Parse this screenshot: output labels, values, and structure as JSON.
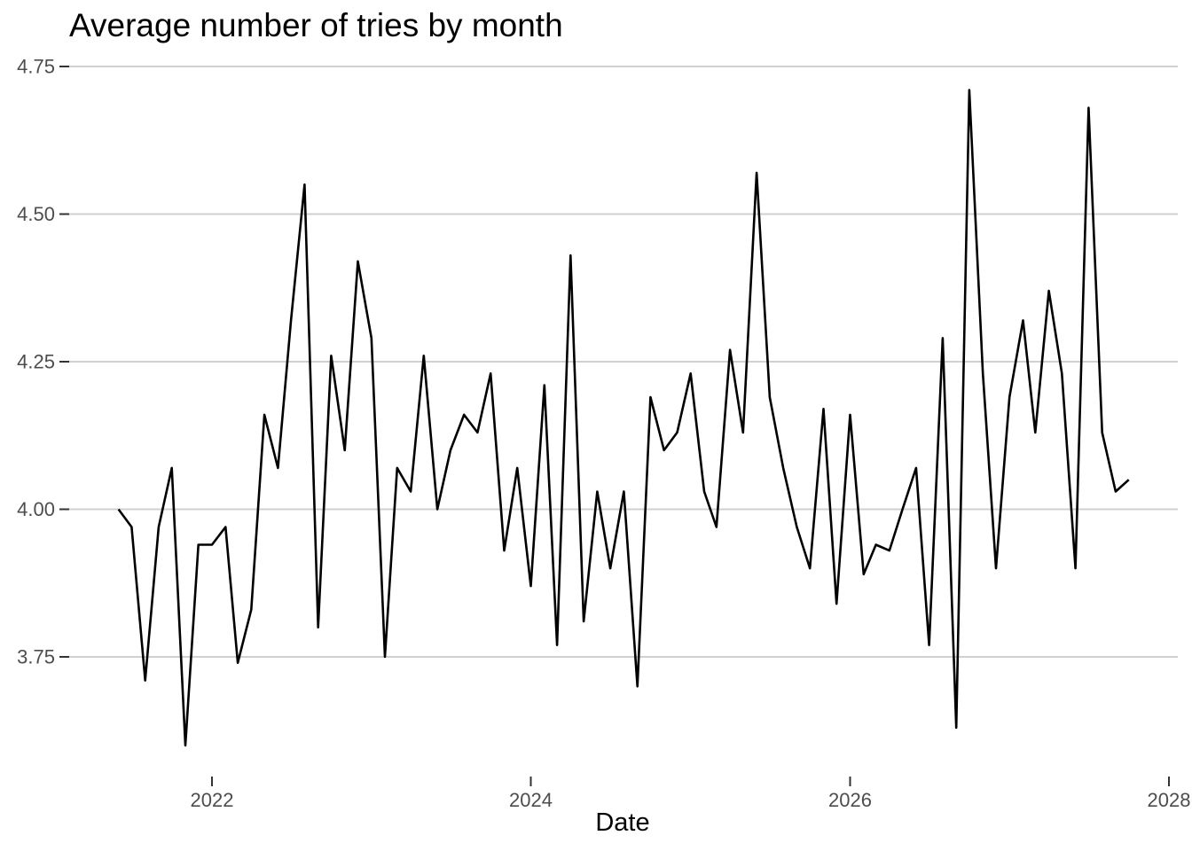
{
  "chart_data": {
    "type": "line",
    "title": "Average number of tries by month",
    "xlabel": "Date",
    "ylabel": "",
    "x_ticks": [
      "2022",
      "2024",
      "2026",
      "2028"
    ],
    "y_ticks": [
      "3.75",
      "4.00",
      "4.25",
      "4.50",
      "4.75"
    ],
    "xlim": [
      "2021-01-01",
      "2028-01-01"
    ],
    "ylim": [
      3.6,
      4.75
    ],
    "grid": {
      "horizontal": true,
      "vertical": false
    },
    "colors": {
      "line": "#000000",
      "grid": "#d0d0d0",
      "tick_text": "#4d4d4d"
    },
    "series": [
      {
        "x": [
          "2021-06-01",
          "2021-07-01",
          "2021-08-01",
          "2021-09-01",
          "2021-10-01",
          "2021-11-01",
          "2021-12-01",
          "2022-01-01",
          "2022-02-01",
          "2022-03-01",
          "2022-04-01",
          "2022-05-01",
          "2022-06-01",
          "2022-07-01",
          "2022-08-01",
          "2022-09-01",
          "2022-10-01",
          "2022-11-01",
          "2022-12-01",
          "2023-01-01",
          "2023-02-01",
          "2023-03-01",
          "2023-04-01",
          "2023-05-01",
          "2023-06-01",
          "2023-07-01",
          "2023-08-01",
          "2023-09-01",
          "2023-10-01",
          "2023-11-01",
          "2023-12-01",
          "2024-01-01",
          "2024-02-01",
          "2024-03-01",
          "2024-04-01",
          "2024-05-01",
          "2024-06-01",
          "2024-07-01",
          "2024-08-01",
          "2024-09-01",
          "2024-10-01",
          "2024-11-01",
          "2024-12-01",
          "2025-01-01",
          "2025-02-01",
          "2025-03-01",
          "2025-04-01",
          "2025-05-01",
          "2025-06-01",
          "2025-07-01",
          "2025-08-01",
          "2025-09-01",
          "2025-10-01",
          "2025-11-01",
          "2025-12-01",
          "2026-01-01",
          "2026-02-01",
          "2026-03-01",
          "2026-04-01",
          "2026-05-01",
          "2026-06-01",
          "2026-07-01",
          "2026-08-01",
          "2026-09-01",
          "2026-10-01",
          "2026-11-01",
          "2026-12-01",
          "2027-01-01",
          "2027-02-01",
          "2027-03-01",
          "2027-04-01",
          "2027-05-01",
          "2027-06-01",
          "2027-07-01",
          "2027-08-01",
          "2027-09-01",
          "2027-10-01"
        ],
        "y": [
          4.0,
          3.97,
          3.71,
          3.97,
          4.07,
          3.6,
          3.94,
          3.94,
          3.97,
          3.74,
          3.83,
          4.16,
          4.07,
          4.32,
          4.55,
          3.8,
          4.26,
          4.1,
          4.42,
          4.29,
          3.75,
          4.07,
          4.03,
          4.26,
          4.0,
          4.1,
          4.16,
          4.13,
          4.23,
          3.93,
          4.07,
          3.87,
          4.21,
          3.77,
          4.43,
          3.81,
          4.03,
          3.9,
          4.03,
          3.7,
          4.19,
          4.1,
          4.13,
          4.23,
          4.03,
          3.97,
          4.27,
          4.13,
          4.57,
          4.19,
          4.07,
          3.97,
          3.9,
          4.17,
          3.84,
          4.16,
          3.89,
          3.94,
          3.93,
          4.0,
          4.07,
          3.77,
          4.29,
          3.63,
          4.71,
          4.23,
          3.9,
          4.19,
          4.32,
          4.13,
          4.37,
          4.23,
          3.9,
          4.68,
          4.13,
          4.03,
          4.05
        ]
      }
    ]
  }
}
